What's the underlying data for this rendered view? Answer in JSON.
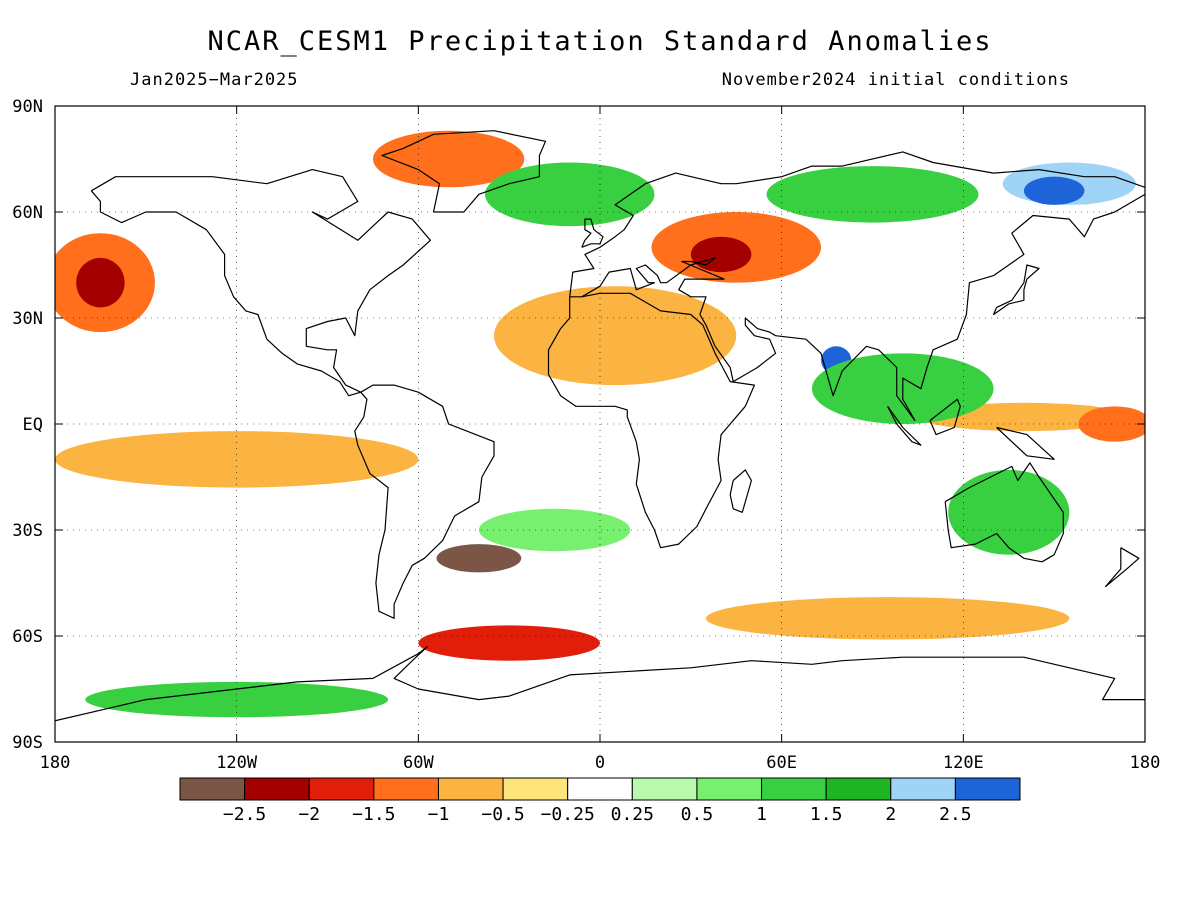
{
  "title": "NCAR_CESM1 Precipitation Standard Anomalies",
  "period": "Jan2025−Mar2025",
  "initial_conditions": "November2024 initial conditions",
  "map": {
    "lon_range": [
      -180,
      180
    ],
    "lat_range": [
      -90,
      90
    ],
    "lat_ticks": [
      {
        "value": 90,
        "label": "90N"
      },
      {
        "value": 60,
        "label": "60N"
      },
      {
        "value": 30,
        "label": "30N"
      },
      {
        "value": 0,
        "label": "EQ"
      },
      {
        "value": -30,
        "label": "30S"
      },
      {
        "value": -60,
        "label": "60S"
      },
      {
        "value": -90,
        "label": "90S"
      }
    ],
    "lon_ticks": [
      {
        "value": -180,
        "label": "180"
      },
      {
        "value": -120,
        "label": "120W"
      },
      {
        "value": -60,
        "label": "60W"
      },
      {
        "value": 0,
        "label": "0"
      },
      {
        "value": 60,
        "label": "60E"
      },
      {
        "value": 120,
        "label": "120E"
      },
      {
        "value": 180,
        "label": "180"
      }
    ],
    "background_category": "neutral",
    "anomaly_regions": [
      {
        "lon": -165,
        "lat": 40,
        "rx": 18,
        "ry": 14,
        "level": -1.25
      },
      {
        "lon": -165,
        "lat": 40,
        "rx": 8,
        "ry": 7,
        "level": -2.25
      },
      {
        "lon": -50,
        "lat": 75,
        "rx": 25,
        "ry": 8,
        "level": -1.25
      },
      {
        "lon": 45,
        "lat": 50,
        "rx": 28,
        "ry": 10,
        "level": -1.25
      },
      {
        "lon": 40,
        "lat": 48,
        "rx": 10,
        "ry": 5,
        "level": -2.25
      },
      {
        "lon": 5,
        "lat": 25,
        "rx": 40,
        "ry": 14,
        "level": -0.75
      },
      {
        "lon": 140,
        "lat": 2,
        "rx": 35,
        "ry": 4,
        "level": -0.75
      },
      {
        "lon": 170,
        "lat": 0,
        "rx": 12,
        "ry": 5,
        "level": -1.25
      },
      {
        "lon": -120,
        "lat": -10,
        "rx": 60,
        "ry": 8,
        "level": -0.75
      },
      {
        "lon": -40,
        "lat": -38,
        "rx": 14,
        "ry": 4,
        "level": -2.75
      },
      {
        "lon": -30,
        "lat": -62,
        "rx": 30,
        "ry": 5,
        "level": -1.75
      },
      {
        "lon": 95,
        "lat": -55,
        "rx": 60,
        "ry": 6,
        "level": -0.75
      },
      {
        "lon": 155,
        "lat": 68,
        "rx": 22,
        "ry": 6,
        "level": 2.25
      },
      {
        "lon": 150,
        "lat": 66,
        "rx": 10,
        "ry": 4,
        "level": 2.75
      },
      {
        "lon": 78,
        "lat": 18,
        "rx": 5,
        "ry": 4,
        "level": 2.75
      },
      {
        "lon": 100,
        "lat": 10,
        "rx": 30,
        "ry": 10,
        "level": 1.25
      },
      {
        "lon": 135,
        "lat": -25,
        "rx": 20,
        "ry": 12,
        "level": 1.25
      },
      {
        "lon": -10,
        "lat": 65,
        "rx": 28,
        "ry": 9,
        "level": 1.25
      },
      {
        "lon": -15,
        "lat": -30,
        "rx": 25,
        "ry": 6,
        "level": 0.75
      },
      {
        "lon": -120,
        "lat": -78,
        "rx": 50,
        "ry": 5,
        "level": 1.25
      },
      {
        "lon": 90,
        "lat": 65,
        "rx": 35,
        "ry": 8,
        "level": 1.25
      }
    ],
    "coastlines": [
      [
        [
          -168,
          66
        ],
        [
          -160,
          70
        ],
        [
          -140,
          70
        ],
        [
          -128,
          70
        ],
        [
          -110,
          68
        ],
        [
          -95,
          72
        ],
        [
          -85,
          70
        ],
        [
          -80,
          63
        ],
        [
          -90,
          58
        ],
        [
          -95,
          60
        ],
        [
          -80,
          52
        ],
        [
          -70,
          60
        ],
        [
          -62,
          58
        ],
        [
          -56,
          52
        ],
        [
          -65,
          45
        ],
        [
          -70,
          42
        ],
        [
          -76,
          38
        ],
        [
          -80,
          32
        ],
        [
          -81,
          25
        ],
        [
          -84,
          30
        ],
        [
          -90,
          29
        ],
        [
          -97,
          27
        ],
        [
          -97,
          22
        ],
        [
          -90,
          21
        ],
        [
          -87,
          21
        ],
        [
          -88,
          16
        ],
        [
          -84,
          11
        ],
        [
          -79,
          9
        ],
        [
          -83,
          8
        ],
        [
          -86,
          12
        ],
        [
          -92,
          15
        ],
        [
          -100,
          17
        ],
        [
          -105,
          20
        ],
        [
          -110,
          24
        ],
        [
          -113,
          31
        ],
        [
          -117,
          32
        ],
        [
          -121,
          36
        ],
        [
          -124,
          42
        ],
        [
          -124,
          48
        ],
        [
          -130,
          55
        ],
        [
          -140,
          60
        ],
        [
          -150,
          60
        ],
        [
          -158,
          57
        ],
        [
          -165,
          60
        ],
        [
          -165,
          63
        ],
        [
          -168,
          66
        ]
      ],
      [
        [
          -79,
          9
        ],
        [
          -75,
          11
        ],
        [
          -68,
          11
        ],
        [
          -60,
          9
        ],
        [
          -52,
          5
        ],
        [
          -50,
          0
        ],
        [
          -44,
          -2
        ],
        [
          -35,
          -5
        ],
        [
          -35,
          -9
        ],
        [
          -39,
          -15
        ],
        [
          -40,
          -22
        ],
        [
          -48,
          -26
        ],
        [
          -52,
          -33
        ],
        [
          -58,
          -38
        ],
        [
          -62,
          -40
        ],
        [
          -65,
          -45
        ],
        [
          -68,
          -51
        ],
        [
          -68,
          -55
        ],
        [
          -73,
          -53
        ],
        [
          -74,
          -45
        ],
        [
          -73,
          -37
        ],
        [
          -71,
          -30
        ],
        [
          -70,
          -18
        ],
        [
          -76,
          -14
        ],
        [
          -80,
          -6
        ],
        [
          -81,
          -2
        ],
        [
          -78,
          2
        ],
        [
          -77,
          7
        ],
        [
          -79,
          9
        ]
      ],
      [
        [
          -10,
          36
        ],
        [
          -6,
          36
        ],
        [
          0,
          37
        ],
        [
          10,
          37
        ],
        [
          20,
          32
        ],
        [
          30,
          31
        ],
        [
          34,
          28
        ],
        [
          38,
          20
        ],
        [
          43,
          12
        ],
        [
          51,
          11
        ],
        [
          48,
          5
        ],
        [
          40,
          -3
        ],
        [
          39,
          -10
        ],
        [
          40,
          -16
        ],
        [
          35,
          -24
        ],
        [
          32,
          -29
        ],
        [
          26,
          -34
        ],
        [
          20,
          -35
        ],
        [
          18,
          -30
        ],
        [
          15,
          -25
        ],
        [
          12,
          -17
        ],
        [
          13,
          -10
        ],
        [
          12,
          -5
        ],
        [
          9,
          2
        ],
        [
          9,
          4
        ],
        [
          5,
          5
        ],
        [
          -2,
          5
        ],
        [
          -8,
          5
        ],
        [
          -13,
          8
        ],
        [
          -17,
          14
        ],
        [
          -17,
          21
        ],
        [
          -13,
          27
        ],
        [
          -10,
          30
        ],
        [
          -10,
          36
        ]
      ],
      [
        [
          -10,
          36
        ],
        [
          -9,
          43
        ],
        [
          -2,
          44
        ],
        [
          -5,
          48
        ],
        [
          0,
          50
        ],
        [
          5,
          53
        ],
        [
          8,
          55
        ],
        [
          11,
          59
        ],
        [
          5,
          62
        ],
        [
          15,
          68
        ],
        [
          25,
          71
        ],
        [
          40,
          68
        ],
        [
          45,
          68
        ],
        [
          60,
          70
        ],
        [
          70,
          73
        ],
        [
          80,
          73
        ],
        [
          100,
          77
        ],
        [
          110,
          74
        ],
        [
          130,
          71
        ],
        [
          145,
          72
        ],
        [
          160,
          70
        ],
        [
          170,
          70
        ],
        [
          180,
          67
        ]
      ],
      [
        [
          180,
          65
        ],
        [
          170,
          60
        ],
        [
          163,
          58
        ],
        [
          160,
          53
        ],
        [
          155,
          58
        ],
        [
          143,
          59
        ],
        [
          136,
          54
        ],
        [
          140,
          48
        ],
        [
          130,
          42
        ],
        [
          122,
          40
        ],
        [
          121,
          31
        ],
        [
          118,
          24
        ],
        [
          110,
          21
        ],
        [
          108,
          16
        ],
        [
          106,
          10
        ],
        [
          100,
          13
        ],
        [
          100,
          7
        ],
        [
          104,
          1
        ],
        [
          98,
          8
        ],
        [
          98,
          16
        ],
        [
          92,
          21
        ],
        [
          88,
          22
        ],
        [
          80,
          15
        ],
        [
          77,
          8
        ],
        [
          73,
          20
        ],
        [
          68,
          24
        ],
        [
          58,
          25
        ],
        [
          56,
          26
        ],
        [
          52,
          27
        ],
        [
          48,
          30
        ],
        [
          48,
          28
        ],
        [
          51,
          25
        ],
        [
          56,
          24
        ],
        [
          58,
          20
        ],
        [
          52,
          16
        ],
        [
          44,
          12
        ],
        [
          43,
          16
        ],
        [
          38,
          22
        ],
        [
          35,
          28
        ],
        [
          33,
          31
        ],
        [
          35,
          36
        ],
        [
          30,
          36
        ],
        [
          26,
          38
        ],
        [
          28,
          41
        ],
        [
          40,
          41
        ],
        [
          41,
          41
        ],
        [
          27,
          46
        ],
        [
          30,
          46
        ],
        [
          35,
          45
        ],
        [
          38,
          47
        ],
        [
          30,
          45
        ],
        [
          22,
          40
        ],
        [
          20,
          40
        ],
        [
          19,
          42
        ],
        [
          15,
          45
        ],
        [
          12,
          44
        ],
        [
          16,
          40
        ],
        [
          18,
          40
        ],
        [
          12,
          38
        ],
        [
          10,
          44
        ],
        [
          3,
          43
        ],
        [
          0,
          39
        ],
        [
          -6,
          36
        ]
      ],
      [
        [
          114,
          -22
        ],
        [
          122,
          -18
        ],
        [
          129,
          -15
        ],
        [
          136,
          -12
        ],
        [
          138,
          -16
        ],
        [
          142,
          -11
        ],
        [
          145,
          -15
        ],
        [
          153,
          -25
        ],
        [
          153,
          -31
        ],
        [
          150,
          -37
        ],
        [
          146,
          -39
        ],
        [
          140,
          -38
        ],
        [
          135,
          -35
        ],
        [
          131,
          -31
        ],
        [
          124,
          -34
        ],
        [
          116,
          -35
        ],
        [
          115,
          -30
        ],
        [
          114,
          -22
        ]
      ],
      [
        [
          -55,
          60
        ],
        [
          -45,
          60
        ],
        [
          -40,
          65
        ],
        [
          -30,
          68
        ],
        [
          -20,
          70
        ],
        [
          -20,
          76
        ],
        [
          -18,
          80
        ],
        [
          -35,
          83
        ],
        [
          -55,
          82
        ],
        [
          -65,
          78
        ],
        [
          -72,
          76
        ],
        [
          -60,
          72
        ],
        [
          -53,
          68
        ],
        [
          -55,
          60
        ]
      ],
      [
        [
          -180,
          -84
        ],
        [
          -160,
          -80
        ],
        [
          -150,
          -78
        ],
        [
          -120,
          -75
        ],
        [
          -100,
          -73
        ],
        [
          -75,
          -72
        ],
        [
          -60,
          -65
        ],
        [
          -57,
          -63
        ],
        [
          -62,
          -67
        ],
        [
          -68,
          -72
        ],
        [
          -60,
          -75
        ],
        [
          -40,
          -78
        ],
        [
          -30,
          -77
        ],
        [
          -10,
          -71
        ],
        [
          10,
          -70
        ],
        [
          30,
          -69
        ],
        [
          50,
          -67
        ],
        [
          70,
          -68
        ],
        [
          80,
          -67
        ],
        [
          100,
          -66
        ],
        [
          120,
          -66
        ],
        [
          140,
          -66
        ],
        [
          160,
          -70
        ],
        [
          170,
          -72
        ],
        [
          166,
          -78
        ],
        [
          180,
          -78
        ]
      ],
      [
        [
          140,
          38
        ],
        [
          141,
          41
        ],
        [
          145,
          44
        ],
        [
          141,
          45
        ],
        [
          140,
          40
        ],
        [
          136,
          35
        ],
        [
          131,
          33
        ],
        [
          130,
          31
        ],
        [
          135,
          34
        ],
        [
          140,
          35
        ],
        [
          140,
          38
        ]
      ],
      [
        [
          -6,
          50
        ],
        [
          -3,
          51
        ],
        [
          0,
          51
        ],
        [
          1,
          53
        ],
        [
          -2,
          55
        ],
        [
          -3,
          58
        ],
        [
          -5,
          58
        ],
        [
          -5,
          55
        ],
        [
          -3,
          54
        ],
        [
          -5,
          52
        ],
        [
          -6,
          50
        ]
      ],
      [
        [
          44,
          -16
        ],
        [
          48,
          -13
        ],
        [
          50,
          -16
        ],
        [
          47,
          -25
        ],
        [
          44,
          -24
        ],
        [
          43,
          -20
        ],
        [
          44,
          -16
        ]
      ],
      [
        [
          95,
          5
        ],
        [
          100,
          -1
        ],
        [
          106,
          -6
        ],
        [
          103,
          -5
        ],
        [
          98,
          0
        ],
        [
          95,
          5
        ]
      ],
      [
        [
          109,
          1
        ],
        [
          118,
          7
        ],
        [
          119,
          5
        ],
        [
          117,
          -1
        ],
        [
          111,
          -3
        ],
        [
          109,
          1
        ]
      ],
      [
        [
          131,
          -1
        ],
        [
          141,
          -3
        ],
        [
          150,
          -10
        ],
        [
          141,
          -9
        ],
        [
          131,
          -1
        ]
      ],
      [
        [
          172,
          -35
        ],
        [
          178,
          -38
        ],
        [
          174,
          -41
        ],
        [
          167,
          -46
        ],
        [
          172,
          -41
        ],
        [
          172,
          -35
        ]
      ]
    ]
  },
  "legend": {
    "colors": [
      "#7b5546",
      "#a50000",
      "#e11e0a",
      "#ff6f1c",
      "#fbb341",
      "#fde47b",
      "#ffffff",
      "#b9f9ae",
      "#78f06f",
      "#38d040",
      "#1eb422",
      "#9fd4f7",
      "#1d64d8"
    ],
    "labels": [
      "−2.5",
      "−2",
      "−1.5",
      "−1",
      "−0.5",
      "−0.25",
      "0.25",
      "0.5",
      "1",
      "1.5",
      "2",
      "2.5"
    ]
  }
}
